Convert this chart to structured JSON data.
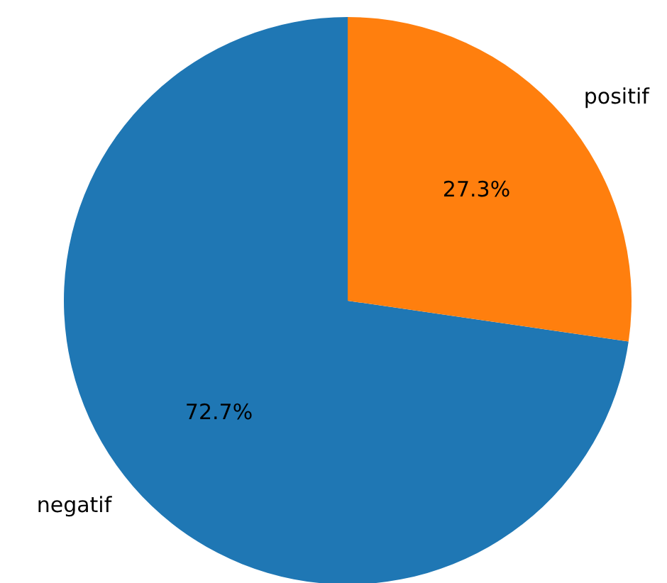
{
  "chart_data": {
    "type": "pie",
    "categories": [
      "negatif",
      "positif"
    ],
    "values": [
      72.7,
      27.3
    ],
    "colors": [
      "#1f77b4",
      "#ff7f0e"
    ],
    "value_labels": [
      "72.7%",
      "27.3%"
    ]
  }
}
